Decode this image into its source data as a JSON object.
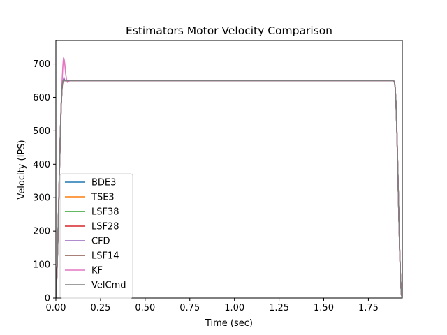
{
  "chart_data": {
    "type": "line",
    "title": "Estimators Motor Velocity Comparison",
    "xlabel": "Time (sec)",
    "ylabel": "Velocity (IPS)",
    "xlim": [
      0,
      1.94
    ],
    "ylim": [
      0,
      770
    ],
    "xticks": [
      0.0,
      0.25,
      0.5,
      0.75,
      1.0,
      1.25,
      1.5,
      1.75
    ],
    "xtick_labels": [
      "0.00",
      "0.25",
      "0.50",
      "0.75",
      "1.00",
      "1.25",
      "1.50",
      "1.75"
    ],
    "yticks": [
      0,
      100,
      200,
      300,
      400,
      500,
      600,
      700
    ],
    "ytick_labels": [
      "0",
      "100",
      "200",
      "300",
      "400",
      "500",
      "600",
      "700"
    ],
    "grid": false,
    "legend_position": "lower-left",
    "series": [
      {
        "name": "BDE3",
        "color": "#1f77b4",
        "x": [
          0,
          0.005,
          0.01,
          0.015,
          0.02,
          0.025,
          0.03,
          0.035,
          0.04,
          0.045,
          0.05,
          0.06,
          0.08,
          1.89,
          1.895,
          1.9,
          1.905,
          1.91,
          1.915,
          1.92,
          1.925,
          1.93,
          1.935,
          1.94
        ],
        "y": [
          0,
          60,
          150,
          260,
          380,
          490,
          580,
          635,
          650,
          652,
          650,
          650,
          650,
          650,
          648,
          630,
          580,
          490,
          380,
          260,
          150,
          60,
          10,
          0
        ]
      },
      {
        "name": "TSE3",
        "color": "#ff7f0e",
        "x": [
          0,
          0.005,
          0.01,
          0.015,
          0.02,
          0.025,
          0.03,
          0.035,
          0.04,
          0.045,
          0.05,
          0.06,
          0.08,
          1.89,
          1.895,
          1.9,
          1.905,
          1.91,
          1.915,
          1.92,
          1.925,
          1.93,
          1.935,
          1.94
        ],
        "y": [
          0,
          60,
          150,
          260,
          380,
          490,
          580,
          635,
          650,
          652,
          650,
          650,
          650,
          650,
          648,
          630,
          580,
          490,
          380,
          260,
          150,
          60,
          10,
          0
        ]
      },
      {
        "name": "LSF38",
        "color": "#2ca02c",
        "x": [
          0,
          0.005,
          0.01,
          0.015,
          0.02,
          0.025,
          0.03,
          0.035,
          0.04,
          0.045,
          0.05,
          0.06,
          0.08,
          1.89,
          1.895,
          1.9,
          1.905,
          1.91,
          1.915,
          1.92,
          1.925,
          1.93,
          1.935,
          1.94
        ],
        "y": [
          0,
          60,
          150,
          260,
          380,
          490,
          580,
          635,
          650,
          652,
          650,
          650,
          650,
          650,
          648,
          630,
          580,
          490,
          380,
          260,
          150,
          60,
          10,
          0
        ]
      },
      {
        "name": "LSF28",
        "color": "#d62728",
        "x": [
          0,
          0.005,
          0.01,
          0.015,
          0.02,
          0.025,
          0.03,
          0.035,
          0.04,
          0.045,
          0.05,
          0.06,
          0.08,
          1.89,
          1.895,
          1.9,
          1.905,
          1.91,
          1.915,
          1.92,
          1.925,
          1.93,
          1.935,
          1.94
        ],
        "y": [
          0,
          60,
          150,
          260,
          380,
          490,
          580,
          635,
          650,
          652,
          650,
          650,
          650,
          650,
          648,
          630,
          580,
          490,
          380,
          260,
          150,
          60,
          10,
          0
        ]
      },
      {
        "name": "CFD",
        "color": "#9467bd",
        "x": [
          0,
          0.005,
          0.01,
          0.015,
          0.02,
          0.025,
          0.03,
          0.035,
          0.04,
          0.045,
          0.05,
          0.06,
          0.08,
          1.89,
          1.895,
          1.9,
          1.905,
          1.91,
          1.915,
          1.92,
          1.925,
          1.93,
          1.935,
          1.94
        ],
        "y": [
          0,
          60,
          150,
          260,
          380,
          490,
          580,
          635,
          650,
          658,
          652,
          650,
          650,
          650,
          648,
          630,
          580,
          490,
          380,
          260,
          150,
          60,
          10,
          0
        ]
      },
      {
        "name": "LSF14",
        "color": "#8c564b",
        "x": [
          0,
          0.005,
          0.01,
          0.015,
          0.02,
          0.025,
          0.03,
          0.035,
          0.04,
          0.045,
          0.05,
          0.06,
          0.08,
          1.89,
          1.895,
          1.9,
          1.905,
          1.91,
          1.915,
          1.92,
          1.925,
          1.93,
          1.935,
          1.94
        ],
        "y": [
          0,
          55,
          145,
          255,
          375,
          485,
          575,
          630,
          648,
          652,
          650,
          650,
          650,
          650,
          648,
          630,
          580,
          490,
          380,
          260,
          150,
          60,
          10,
          0
        ]
      },
      {
        "name": "KF",
        "color": "#e377c2",
        "x": [
          0,
          0.005,
          0.01,
          0.015,
          0.02,
          0.025,
          0.03,
          0.035,
          0.04,
          0.043,
          0.046,
          0.05,
          0.055,
          0.06,
          0.065,
          0.07,
          0.08,
          0.09,
          1.89,
          1.895,
          1.9,
          1.905,
          1.91,
          1.915,
          1.92,
          1.925,
          1.93,
          1.935,
          1.94
        ],
        "y": [
          0,
          60,
          150,
          260,
          380,
          490,
          585,
          650,
          700,
          718,
          715,
          700,
          670,
          652,
          645,
          648,
          650,
          650,
          650,
          648,
          630,
          580,
          490,
          380,
          260,
          150,
          60,
          10,
          0
        ]
      },
      {
        "name": "VelCmd",
        "color": "#7f7f7f",
        "x": [
          0,
          0.005,
          0.01,
          0.015,
          0.02,
          0.025,
          0.03,
          0.035,
          0.04,
          0.045,
          0.05,
          0.06,
          0.08,
          1.89,
          1.895,
          1.9,
          1.905,
          1.91,
          1.915,
          1.92,
          1.925,
          1.93,
          1.935,
          1.94
        ],
        "y": [
          0,
          60,
          150,
          260,
          380,
          490,
          580,
          635,
          650,
          650,
          650,
          650,
          650,
          650,
          648,
          630,
          580,
          490,
          380,
          260,
          150,
          60,
          10,
          0
        ]
      }
    ]
  }
}
